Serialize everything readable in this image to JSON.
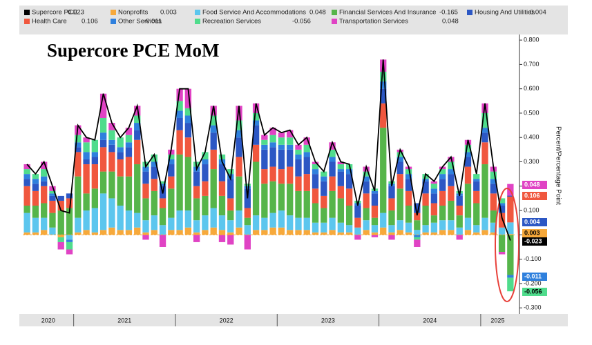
{
  "chart_data": {
    "type": "bar",
    "title": "Supercore PCE MoM",
    "y_axis_label": "Percent/Percentage Point",
    "categories": [
      "2020",
      null,
      null,
      null,
      null,
      null,
      "2021",
      null,
      null,
      null,
      null,
      null,
      null,
      null,
      null,
      null,
      null,
      null,
      "2022",
      null,
      null,
      null,
      null,
      null,
      null,
      null,
      null,
      null,
      null,
      null,
      "2023",
      null,
      null,
      null,
      null,
      null,
      null,
      null,
      null,
      null,
      null,
      null,
      "2024",
      null,
      null,
      null,
      null,
      null,
      null,
      null,
      null,
      null,
      null,
      null,
      "2025",
      null,
      null,
      null
    ],
    "ylim": [
      -0.325,
      0.823
    ],
    "yticks": [
      {
        "value": 0.8,
        "label": "0.800"
      },
      {
        "value": 0.7,
        "label": "0.700"
      },
      {
        "value": 0.6,
        "label": "0.600"
      },
      {
        "value": 0.5,
        "label": "0.500"
      },
      {
        "value": 0.4,
        "label": "0.400"
      },
      {
        "value": 0.3,
        "label": "0.300"
      },
      {
        "value": 0.2,
        "label": "0.200"
      },
      {
        "value": 0.1,
        "label": "0.100"
      },
      {
        "value": 0,
        "label": "0.000"
      },
      {
        "value": -0.1,
        "label": "-0.100"
      },
      {
        "value": -0.2,
        "label": "-0.200"
      },
      {
        "value": -0.3,
        "label": "-0.300"
      }
    ],
    "y_axis_side": "right",
    "grid": false,
    "stacked": true,
    "series": [
      {
        "name": "Supercore PCE",
        "type": "line",
        "color": "#000000",
        "values": [
          0.29,
          0.25,
          0.3,
          0.2,
          0.1,
          0.09,
          0.45,
          0.4,
          0.39,
          0.58,
          0.46,
          0.4,
          0.44,
          0.53,
          0.28,
          0.33,
          0.17,
          0.35,
          0.6,
          0.6,
          0.27,
          0.34,
          0.53,
          0.3,
          0.23,
          0.53,
          0.15,
          0.54,
          0.41,
          0.44,
          0.42,
          0.43,
          0.37,
          0.4,
          0.3,
          0.26,
          0.38,
          0.3,
          0.29,
          0.12,
          0.28,
          0.18,
          0.72,
          0.2,
          0.35,
          0.28,
          0.08,
          0.25,
          0.22,
          0.28,
          0.32,
          0.16,
          0.39,
          0.25,
          0.54,
          0.28,
          0.07,
          -0.023
        ]
      },
      {
        "name": "Nonprofits",
        "color": "#f7a93b",
        "values": [
          0.01,
          0.01,
          0.02,
          0.0,
          -0.01,
          0.0,
          0.01,
          0.02,
          0.01,
          0.02,
          0.03,
          0.02,
          0.02,
          0.03,
          0.01,
          0.02,
          0.0,
          0.02,
          0.02,
          0.03,
          0.01,
          0.02,
          0.03,
          0.02,
          0.01,
          0.03,
          0.0,
          0.02,
          0.02,
          0.03,
          0.03,
          0.02,
          0.02,
          0.02,
          0.01,
          0.01,
          0.02,
          0.01,
          0.01,
          0.0,
          0.02,
          0.01,
          0.03,
          0.01,
          0.02,
          0.01,
          0.0,
          0.01,
          0.01,
          0.02,
          0.02,
          0.0,
          0.02,
          0.01,
          0.02,
          0.01,
          0.0,
          0.003
        ]
      },
      {
        "name": "Food Service And Accommodations",
        "color": "#5cc6ee",
        "values": [
          0.08,
          0.06,
          0.05,
          0.03,
          0.0,
          -0.02,
          0.06,
          0.08,
          0.1,
          0.15,
          0.12,
          0.1,
          0.08,
          0.06,
          0.05,
          0.06,
          0.04,
          0.05,
          0.08,
          0.07,
          0.05,
          0.06,
          0.08,
          0.06,
          0.05,
          0.07,
          0.04,
          0.06,
          0.05,
          0.06,
          0.07,
          0.06,
          0.05,
          0.05,
          0.04,
          0.04,
          0.05,
          0.04,
          0.03,
          0.03,
          0.04,
          0.03,
          0.06,
          0.03,
          0.04,
          0.04,
          0.02,
          0.03,
          0.04,
          0.04,
          0.04,
          0.03,
          0.05,
          0.03,
          0.05,
          0.04,
          0.03,
          0.048
        ]
      },
      {
        "name": "Financial Services And Insurance",
        "color": "#56b54a",
        "values": [
          0.03,
          0.05,
          0.06,
          0.06,
          0.1,
          0.11,
          0.17,
          0.07,
          0.08,
          0.09,
          0.11,
          0.12,
          0.14,
          0.2,
          0.09,
          0.1,
          0.07,
          0.12,
          0.23,
          0.22,
          0.09,
          0.08,
          0.16,
          0.08,
          0.04,
          0.14,
          0.03,
          0.22,
          0.14,
          0.13,
          0.11,
          0.13,
          0.11,
          0.11,
          0.08,
          0.06,
          0.11,
          0.1,
          0.08,
          0,
          0.05,
          0.03,
          0.35,
          0.06,
          0.13,
          0.07,
          0.04,
          0.08,
          0.03,
          0.06,
          0.08,
          0.05,
          0.14,
          0.09,
          0.22,
          0.05,
          -0.07,
          -0.165
        ]
      },
      {
        "name": "Housing And Utilities",
        "color": "#2c57c4",
        "values": [
          0.03,
          0.03,
          0.02,
          0.02,
          0.02,
          0.02,
          0.02,
          0.02,
          0.03,
          0.03,
          0.03,
          0.03,
          0.04,
          0.04,
          0.05,
          0.05,
          0.05,
          0.05,
          0.05,
          0.06,
          0.06,
          0.07,
          0.07,
          0.07,
          0.08,
          0.08,
          0.08,
          0.08,
          0.08,
          0.08,
          0.08,
          0.07,
          0.07,
          0.07,
          0.06,
          0.06,
          0.06,
          0.06,
          0.06,
          0.05,
          0.05,
          0.05,
          0.06,
          0.05,
          0.05,
          0.05,
          0.04,
          0.05,
          0.04,
          0.05,
          0.05,
          0.04,
          0.04,
          0.04,
          0.04,
          0.04,
          0.03,
          0.004
        ]
      },
      {
        "name": "Health Care",
        "color": "#f0573e",
        "values": [
          0.08,
          0.06,
          0.07,
          0.05,
          0.04,
          0.04,
          0.1,
          0.12,
          0.1,
          0.1,
          0.08,
          0.07,
          0.08,
          0.1,
          0.06,
          0.05,
          0.04,
          0.05,
          0.1,
          0.08,
          0.05,
          0.06,
          0.08,
          0.06,
          0.05,
          0.08,
          0.04,
          0.07,
          0.06,
          0.06,
          0.06,
          0.07,
          0.06,
          0.07,
          0.06,
          0.05,
          0.06,
          0.05,
          0.07,
          0.04,
          0.06,
          0.05,
          0.1,
          0.05,
          0.06,
          0.06,
          0.03,
          0.05,
          0.05,
          0.06,
          0.06,
          0.04,
          0.07,
          0.05,
          0.09,
          0.07,
          0.06,
          0.106
        ]
      },
      {
        "name": "Other Services",
        "color": "#2f80dd",
        "values": [
          0.02,
          0.02,
          0.02,
          0.01,
          0.0,
          -0.01,
          0.02,
          0.03,
          0.02,
          0.03,
          0.02,
          0.02,
          0.02,
          0.03,
          0.02,
          0.02,
          0.01,
          0.02,
          0.03,
          0.03,
          0.02,
          0.02,
          0.03,
          0.02,
          0.02,
          0.03,
          0.01,
          0.02,
          0.02,
          0.02,
          0.02,
          0.02,
          0.02,
          0.02,
          0.02,
          0.02,
          0.02,
          0.01,
          0.02,
          0.01,
          0.02,
          0.01,
          0.03,
          0.01,
          0.02,
          0.02,
          -0.01,
          0.01,
          0.02,
          0.02,
          0.02,
          0.01,
          0.02,
          0.01,
          0.02,
          0.02,
          0.01,
          -0.011
        ]
      },
      {
        "name": "Recreation Services",
        "color": "#4fdc8c",
        "values": [
          0.02,
          0.02,
          0.03,
          0.01,
          -0.02,
          -0.03,
          0.03,
          0.04,
          0.05,
          0.06,
          0.04,
          0.04,
          0.03,
          0.03,
          0.02,
          0.03,
          0.01,
          0.02,
          0.04,
          0.03,
          0.02,
          0.03,
          0.04,
          0.02,
          0.02,
          0.04,
          0.01,
          0.03,
          0.02,
          0.03,
          0.03,
          0.03,
          0.02,
          0.03,
          0.02,
          0.02,
          0.03,
          0.02,
          0.02,
          0.01,
          0.02,
          0.01,
          0.04,
          0.01,
          0.02,
          0.02,
          -0.01,
          0.02,
          0.02,
          0.02,
          0.03,
          0.01,
          0.03,
          0.02,
          0.06,
          0.03,
          0.02,
          -0.056
        ]
      },
      {
        "name": "Transportation Services",
        "color": "#e043c4",
        "values": [
          0.02,
          0.0,
          0.03,
          0.02,
          -0.03,
          -0.02,
          0.04,
          0.02,
          0.0,
          0.1,
          0.03,
          0.0,
          0.03,
          0.04,
          -0.02,
          0.0,
          -0.05,
          0.02,
          0.05,
          0.08,
          -0.03,
          0.0,
          0.04,
          -0.03,
          -0.04,
          0.06,
          -0.06,
          0.04,
          0.02,
          0.03,
          0.02,
          0.03,
          0.02,
          0.03,
          0.01,
          0.0,
          0.03,
          0.01,
          0.0,
          -0.02,
          0.02,
          -0.01,
          0.05,
          -0.02,
          0.01,
          0.01,
          -0.03,
          0.0,
          0.01,
          0.01,
          0.02,
          -0.02,
          0.02,
          0.0,
          0.04,
          0.02,
          -0.01,
          0.048
        ]
      }
    ]
  }
}
